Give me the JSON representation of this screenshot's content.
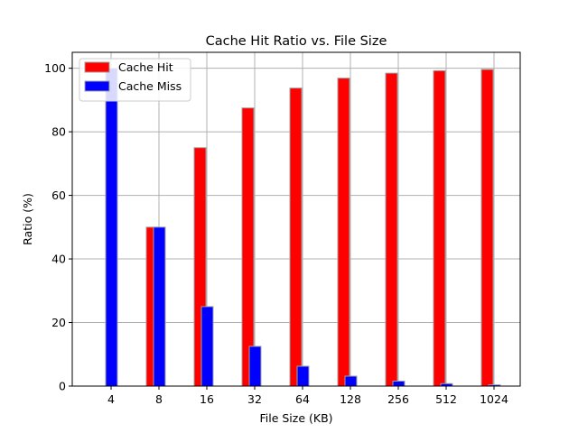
{
  "chart_data": {
    "type": "bar",
    "title": "Cache Hit Ratio vs. File Size",
    "xlabel": "File Size (KB)",
    "ylabel": "Ratio (%)",
    "categories": [
      "4",
      "8",
      "16",
      "32",
      "64",
      "128",
      "256",
      "512",
      "1024"
    ],
    "series": [
      {
        "name": "Cache Hit",
        "color": "#ff0000",
        "values": [
          0,
          50,
          75,
          87.5,
          93.75,
          96.875,
          98.4375,
          99.21875,
          99.609375
        ]
      },
      {
        "name": "Cache Miss",
        "color": "#0000ff",
        "values": [
          100,
          50,
          25,
          12.5,
          6.25,
          3.125,
          1.5625,
          0.78125,
          0.390625
        ]
      }
    ],
    "ylim": [
      0,
      105
    ],
    "yticks": [
      0,
      20,
      40,
      60,
      80,
      100
    ],
    "grid": true,
    "legend_position": "top-left"
  }
}
